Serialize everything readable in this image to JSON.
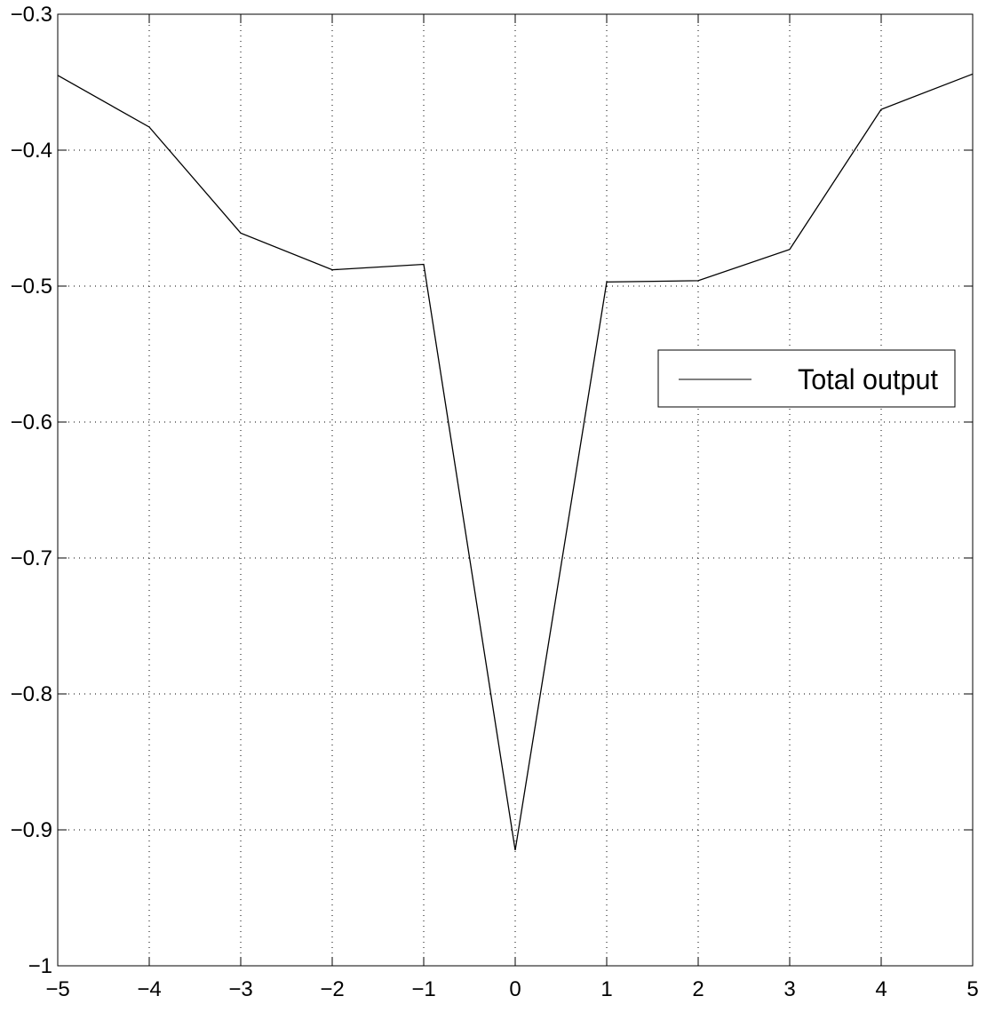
{
  "chart_data": {
    "type": "line",
    "title": "",
    "xlabel": "",
    "ylabel": "",
    "xlim": [
      -5,
      5
    ],
    "ylim": [
      -1,
      -0.3
    ],
    "grid": true,
    "legend_position": "right",
    "x_ticks": [
      -5,
      -4,
      -3,
      -2,
      -1,
      0,
      1,
      2,
      3,
      4,
      5
    ],
    "x_tick_labels": [
      "−5",
      "−4",
      "−3",
      "−2",
      "−1",
      "0",
      "1",
      "2",
      "3",
      "4",
      "5"
    ],
    "y_ticks": [
      -1,
      -0.9,
      -0.8,
      -0.7,
      -0.6,
      -0.5,
      -0.4,
      -0.3
    ],
    "y_tick_labels": [
      "−1",
      "−0.9",
      "−0.8",
      "−0.7",
      "−0.6",
      "−0.5",
      "−0.4",
      "−0.3"
    ],
    "series": [
      {
        "name": "Total output",
        "color": "#000000",
        "x": [
          -5,
          -4,
          -3,
          -2,
          -1,
          0,
          1,
          2,
          3,
          4,
          5
        ],
        "y": [
          -0.345,
          -0.383,
          -0.461,
          -0.488,
          -0.484,
          -0.915,
          -0.497,
          -0.496,
          -0.473,
          -0.37,
          -0.344
        ]
      }
    ]
  }
}
